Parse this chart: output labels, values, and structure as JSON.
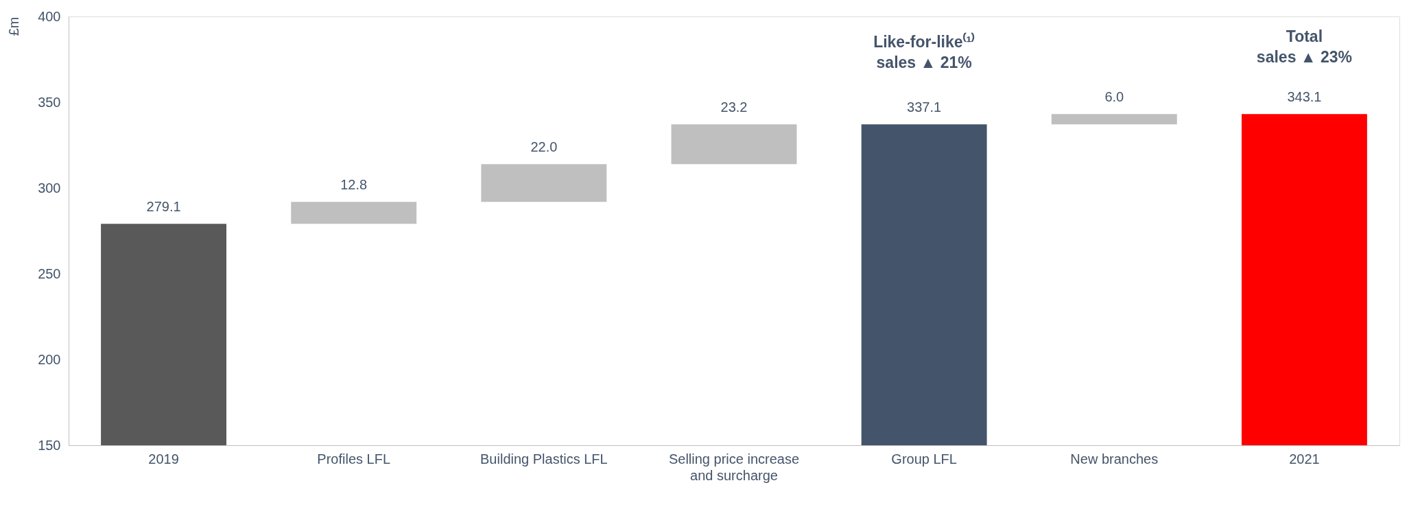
{
  "chart_data": {
    "type": "bar",
    "ylabel": "£m",
    "categories": [
      "2019",
      "Profiles LFL",
      "Building Plastics LFL",
      "Selling price increase and surcharge",
      "Group LFL",
      "New branches",
      "2021"
    ],
    "values": [
      279.1,
      12.8,
      22.0,
      23.2,
      337.1,
      6.0,
      343.1
    ],
    "base": [
      null,
      279.1,
      291.9,
      313.9,
      null,
      337.1,
      null
    ],
    "colors": [
      "#595959",
      "#bfbfbf",
      "#bfbfbf",
      "#bfbfbf",
      "#44546a",
      "#bfbfbf",
      "#ff0000"
    ],
    "value_labels": [
      "279.1",
      "12.8",
      "22.0",
      "23.2",
      "337.1",
      "6.0",
      "343.1"
    ],
    "ylim": [
      150,
      400
    ],
    "yticks": [
      150,
      200,
      250,
      300,
      350,
      400
    ],
    "grid": false,
    "annotations": [
      "Like-for-like⁽¹⁾\nsales ▲ 21%",
      "Total\nsales ▲ 23%"
    ]
  }
}
